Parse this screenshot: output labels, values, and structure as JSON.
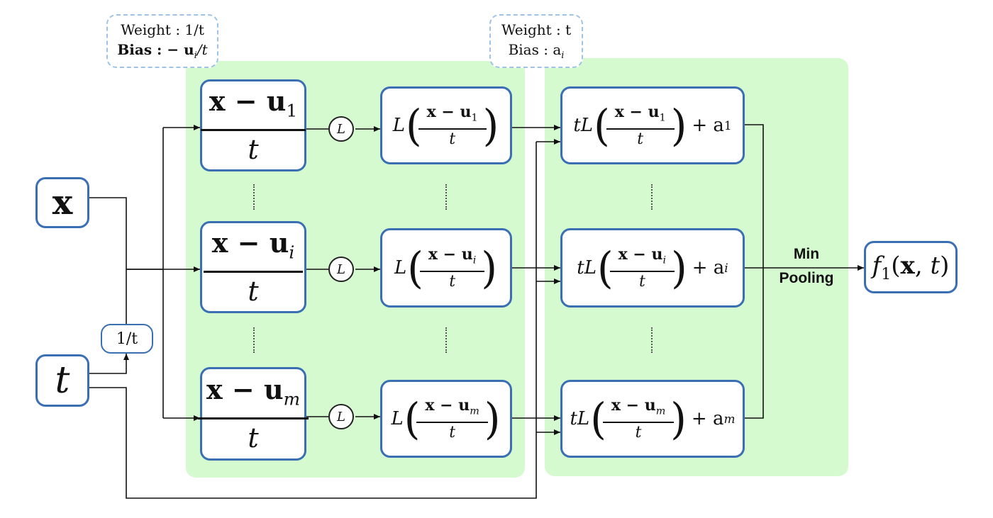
{
  "inputs": {
    "x_label": "x",
    "t_label": "t",
    "inv_t_label": "1/t"
  },
  "annotations": {
    "layer1_weight": "Weight : 1/t",
    "layer1_bias": "Bias : − u",
    "layer1_bias_sub": "i",
    "layer1_bias_tail": "/t",
    "layer2_weight": "Weight : t",
    "layer2_bias": "Bias : a",
    "layer2_bias_sub": "i"
  },
  "activation_label": "L",
  "rows": [
    {
      "index": "1",
      "num": "x − u",
      "den": "t",
      "act": "L",
      "scale": "tL",
      "plus": "+ a"
    },
    {
      "index": "i",
      "num": "x − u",
      "den": "t",
      "act": "L",
      "scale": "tL",
      "plus": "+ a"
    },
    {
      "index": "m",
      "num": "x − u",
      "den": "t",
      "act": "L",
      "scale": "tL",
      "plus": "+ a"
    }
  ],
  "pooling": {
    "line1": "Min",
    "line2": "Pooling"
  },
  "output": {
    "func": "f",
    "func_sub": "1",
    "args_x": "x",
    "args_t": "t"
  }
}
